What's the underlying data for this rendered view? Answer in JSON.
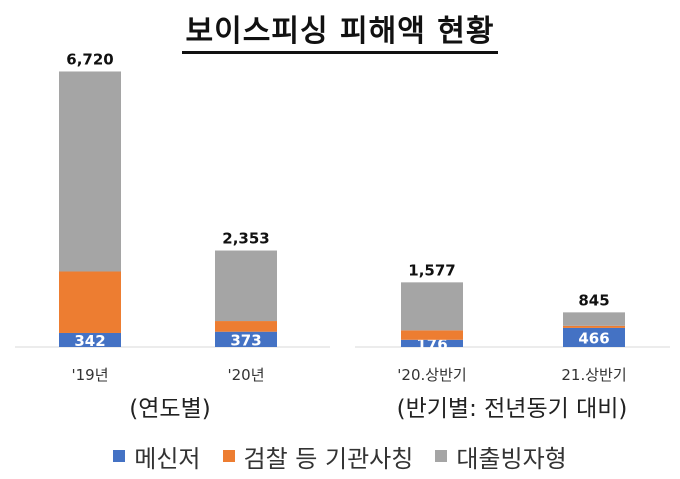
{
  "title": "보이스피싱 피해액 현황",
  "colors": {
    "messenger": "#4472C4",
    "agency": "#ED7D31",
    "loan": "#A5A5A5"
  },
  "legend": [
    {
      "label": "메신저",
      "color": "#4472C4"
    },
    {
      "label": "검찰 등 기관사칭",
      "color": "#ED7D31"
    },
    {
      "label": "대출빙자형",
      "color": "#A5A5A5"
    }
  ],
  "chart_data": [
    {
      "type": "bar",
      "stacked": true,
      "xlabel": "(연도별)",
      "categories": [
        "'19년",
        "'20년"
      ],
      "totals": [
        6720,
        2353
      ],
      "total_labels": [
        "6,720",
        "2,353"
      ],
      "series": [
        {
          "name": "메신저",
          "values": [
            342,
            373
          ],
          "labels": [
            "342",
            "373"
          ]
        },
        {
          "name": "검찰 등 기관사칭",
          "values": [
            1500,
            260
          ],
          "labels": [
            "",
            ""
          ]
        },
        {
          "name": "대출빙자형",
          "values": [
            4878,
            1720
          ],
          "labels": [
            "",
            ""
          ]
        }
      ],
      "ylim": [
        0,
        7000
      ]
    },
    {
      "type": "bar",
      "stacked": true,
      "xlabel": "(반기별: 전년동기 대비)",
      "categories": [
        "'20.상반기",
        "21.상반기"
      ],
      "totals": [
        1577,
        845
      ],
      "total_labels": [
        "1,577",
        "845"
      ],
      "series": [
        {
          "name": "메신저",
          "values": [
            176,
            466
          ],
          "labels": [
            "176",
            "466"
          ]
        },
        {
          "name": "검찰 등 기관사칭",
          "values": [
            230,
            50
          ],
          "labels": [
            "",
            ""
          ]
        },
        {
          "name": "대출빙자형",
          "values": [
            1171,
            329
          ],
          "labels": [
            "",
            ""
          ]
        }
      ],
      "ylim": [
        0,
        7000
      ]
    }
  ]
}
